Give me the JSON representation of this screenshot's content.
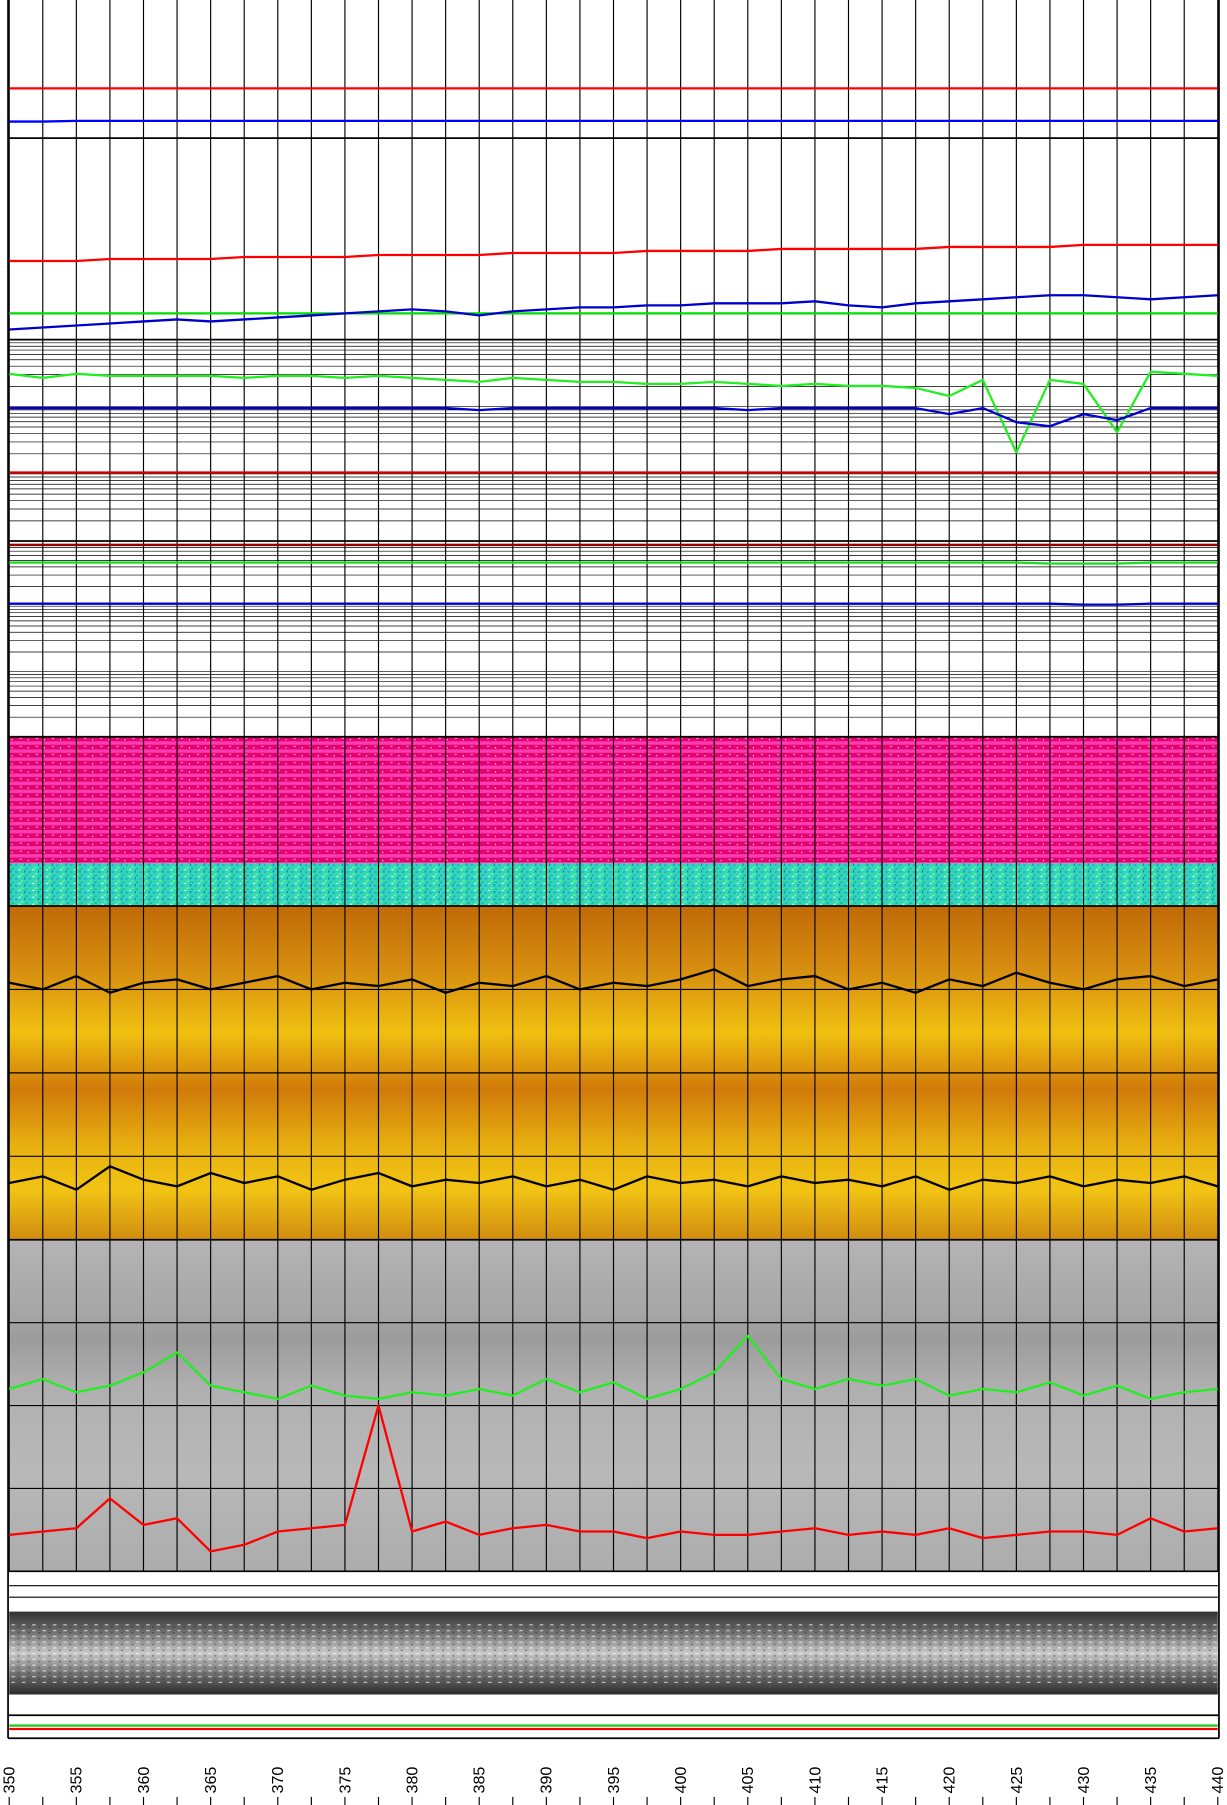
{
  "chart_data": {
    "type": "well-log",
    "xlim": [
      350,
      440
    ],
    "xticks": [
      350,
      355,
      360,
      365,
      370,
      375,
      380,
      385,
      390,
      395,
      400,
      405,
      410,
      415,
      420,
      425,
      430,
      435,
      440
    ],
    "xminorticks": [
      352.5,
      357.5,
      362.5,
      367.5,
      372.5,
      377.5,
      382.5,
      387.5,
      392.5,
      397.5,
      402.5,
      407.5,
      412.5,
      417.5,
      422.5,
      427.5,
      432.5,
      437.5
    ],
    "x": [
      350,
      352.5,
      355,
      357.5,
      360,
      362.5,
      365,
      367.5,
      370,
      372.5,
      375,
      377.5,
      380,
      382.5,
      385,
      387.5,
      390,
      392.5,
      395,
      397.5,
      400,
      402.5,
      405,
      407.5,
      410,
      412.5,
      415,
      417.5,
      420,
      422.5,
      425,
      427.5,
      430,
      432.5,
      435,
      437.5,
      440
    ],
    "tracks": [
      {
        "ylim": [
          0,
          100
        ],
        "series": [
          {
            "color": "#ff0000",
            "values": [
              36,
              36,
              36,
              36,
              36,
              36,
              36,
              36,
              36,
              36,
              36,
              36,
              36,
              36,
              36,
              36,
              36,
              36,
              36,
              36,
              36,
              36,
              36,
              36,
              36,
              36,
              36,
              36,
              36,
              36,
              36,
              36,
              36,
              36,
              36,
              36,
              36
            ]
          },
          {
            "color": "#0000ff",
            "values": [
              12,
              12,
              12.5,
              12.5,
              12.5,
              12.5,
              12.5,
              12.5,
              12.5,
              12.5,
              12.5,
              12.5,
              12.5,
              12.5,
              12.5,
              12.5,
              12.5,
              12.5,
              12.5,
              12.5,
              12.5,
              12.5,
              12.5,
              12.5,
              12.5,
              12.5,
              12.5,
              12.5,
              12.5,
              12.5,
              12.5,
              12.5,
              12.5,
              12.5,
              12.5,
              12.5,
              12.5
            ]
          }
        ]
      },
      {
        "ylim": [
          0,
          100
        ],
        "series": [
          {
            "color": "#ff0000",
            "values": [
              39,
              39,
              39,
              40,
              40,
              40,
              40,
              41,
              41,
              41,
              41,
              42,
              42,
              42,
              42,
              43,
              43,
              43,
              43,
              44,
              44,
              44,
              44,
              45,
              45,
              45,
              45,
              45,
              46,
              46,
              46,
              46,
              47,
              47,
              47,
              47,
              47
            ]
          },
          {
            "color": "#00dd00",
            "values": [
              13,
              13,
              13,
              13,
              13,
              13,
              13,
              13,
              13,
              13,
              13,
              13,
              13,
              13,
              13,
              13,
              13,
              13,
              13,
              13,
              13,
              13,
              13,
              13,
              13,
              13,
              13,
              13,
              13,
              13,
              13,
              13,
              13,
              13,
              13,
              13,
              13
            ]
          },
          {
            "color": "#0000cc",
            "values": [
              5,
              6,
              7,
              8,
              9,
              10,
              9,
              10,
              11,
              12,
              13,
              14,
              15,
              14,
              12,
              14,
              15,
              16,
              16,
              17,
              17,
              18,
              18,
              18,
              19,
              17,
              16,
              18,
              19,
              20,
              21,
              22,
              22,
              21,
              20,
              21,
              22
            ]
          }
        ]
      },
      {
        "ylim": [
          0,
          100
        ],
        "hgrid": [
          10,
          15.9,
          20.1,
          23.3,
          25.9,
          28.2,
          30.1,
          31.8,
          33.3,
          43.3,
          49.2,
          53.4,
          56.6,
          59.2,
          61.5,
          63.4,
          65.1,
          66.7,
          76.7,
          82.6,
          86.8,
          90,
          92.6,
          94.8,
          96.7,
          98.4
        ],
        "series": [
          {
            "color": "#22ee22",
            "values": [
              83,
              81,
              83,
              82,
              82,
              82,
              82,
              81,
              82,
              82,
              81,
              82,
              81,
              80,
              79,
              81,
              80,
              79,
              79,
              78,
              78,
              79,
              78,
              77,
              78,
              77,
              77,
              76,
              72,
              80,
              44,
              80,
              78,
              54,
              84,
              83,
              82
            ]
          },
          {
            "color": "#0000cc",
            "values": [
              66,
              66,
              66,
              66,
              66,
              66,
              66,
              66,
              66,
              66,
              66,
              66,
              66,
              66,
              65,
              66,
              66,
              66,
              66,
              66,
              66,
              66,
              65,
              66,
              66,
              66,
              66,
              66,
              63,
              66,
              59,
              57,
              63,
              60,
              66,
              66,
              66
            ]
          },
          {
            "color": "#cc0000",
            "values": [
              34,
              34,
              34,
              34,
              34,
              34,
              34,
              34,
              34,
              34,
              34,
              34,
              34,
              34,
              34,
              34,
              34,
              34,
              34,
              34,
              34,
              34,
              34,
              34,
              34,
              34,
              34,
              34,
              34,
              34,
              34,
              34,
              34,
              34,
              34,
              34,
              34
            ]
          }
        ]
      },
      {
        "ylim": [
          0,
          100
        ],
        "hgrid": [
          10,
          15.9,
          20.1,
          23.3,
          25.9,
          28.2,
          30.1,
          31.8,
          33.3,
          43.3,
          49.2,
          53.4,
          56.6,
          59.2,
          61.5,
          63.4,
          65.1,
          66.7,
          76.7,
          82.6,
          86.8,
          90,
          92.6,
          94.8,
          96.7,
          98.4
        ],
        "series": [
          {
            "color": "#990000",
            "values": [
              98,
              98,
              98,
              98,
              98,
              98,
              98,
              98,
              98,
              98,
              98,
              98,
              98,
              98,
              98,
              98,
              98,
              98,
              98,
              98,
              98,
              98,
              98,
              98,
              98,
              98,
              98,
              98,
              98,
              98,
              98,
              98,
              98,
              98,
              98,
              98,
              98
            ]
          },
          {
            "color": "#22dd22",
            "values": [
              89,
              89,
              89,
              89,
              89,
              89,
              89,
              89,
              89,
              89,
              89,
              89,
              89,
              89,
              89,
              89,
              89,
              89,
              89,
              89,
              89,
              89,
              89,
              89,
              89,
              89,
              89,
              89,
              89,
              89,
              89,
              88.5,
              88.5,
              88.5,
              89,
              89,
              89
            ]
          },
          {
            "color": "#0000cc",
            "values": [
              68,
              68,
              68,
              68,
              68,
              68,
              68,
              68,
              68,
              68,
              68,
              68,
              68,
              68,
              68,
              68,
              68,
              68,
              68,
              68,
              68,
              68,
              68,
              68,
              68,
              68,
              68,
              68,
              68,
              68,
              68,
              68,
              67.5,
              67.5,
              68,
              68,
              68
            ]
          }
        ]
      },
      {
        "ylim": [
          0,
          100
        ],
        "hgrid": [
          75,
          50,
          25
        ],
        "series": [
          {
            "color": "#000000",
            "values": [
              77,
              75,
              79,
              74,
              77,
              78,
              75,
              77,
              79,
              75,
              77,
              76,
              78,
              74,
              77,
              76,
              79,
              75,
              77,
              76,
              78,
              81,
              76,
              78,
              79,
              75,
              77,
              74,
              78,
              76,
              80,
              77,
              75,
              78,
              79,
              76,
              78
            ]
          },
          {
            "color": "#000000",
            "values": [
              17,
              19,
              15,
              22,
              18,
              16,
              20,
              17,
              19,
              15,
              18,
              20,
              16,
              18,
              17,
              19,
              16,
              18,
              15,
              19,
              17,
              18,
              16,
              19,
              17,
              18,
              16,
              19,
              15,
              18,
              17,
              19,
              16,
              18,
              17,
              19,
              16
            ]
          }
        ]
      },
      {
        "ylim": [
          0,
          100
        ],
        "hgrid": [
          75,
          50,
          25
        ],
        "series": [
          {
            "color": "#22ee22",
            "values": [
              55,
              58,
              54,
              56,
              60,
              66,
              56,
              54,
              52,
              56,
              53,
              52,
              54,
              53,
              55,
              53,
              58,
              54,
              57,
              52,
              55,
              60,
              71,
              58,
              55,
              58,
              56,
              58,
              53,
              55,
              54,
              57,
              53,
              56,
              52,
              54,
              55
            ]
          },
          {
            "color": "#ff0000",
            "values": [
              11,
              12,
              13,
              22,
              14,
              16,
              6,
              8,
              12,
              13,
              14,
              50,
              12,
              15,
              11,
              13,
              14,
              12,
              12,
              10,
              12,
              11,
              11,
              12,
              13,
              11,
              12,
              11,
              13,
              10,
              11,
              12,
              12,
              11,
              16,
              12,
              13
            ]
          }
        ]
      },
      {
        "ylim": [
          0,
          100
        ],
        "hgrid": [
          90,
          82
        ]
      },
      {
        "ylim": [
          0,
          100
        ],
        "series": [
          {
            "color": "#ff0000",
            "values": [
              40,
              40,
              40,
              40,
              40,
              40,
              40,
              40,
              40,
              40,
              40,
              40,
              40,
              40,
              40,
              40,
              40,
              40,
              40,
              40,
              40,
              40,
              40,
              40,
              40,
              40,
              40,
              40,
              40,
              40,
              40,
              40,
              40,
              40,
              40,
              40,
              40
            ]
          },
          {
            "color": "#22cc22",
            "values": [
              55,
              55,
              55,
              55,
              55,
              55,
              55,
              55,
              55,
              55,
              55,
              55,
              55,
              55,
              55,
              55,
              55,
              55,
              55,
              55,
              55,
              55,
              55,
              55,
              55,
              55,
              55,
              55,
              55,
              55,
              55,
              55,
              55,
              55,
              55,
              55,
              55
            ]
          }
        ]
      }
    ]
  }
}
